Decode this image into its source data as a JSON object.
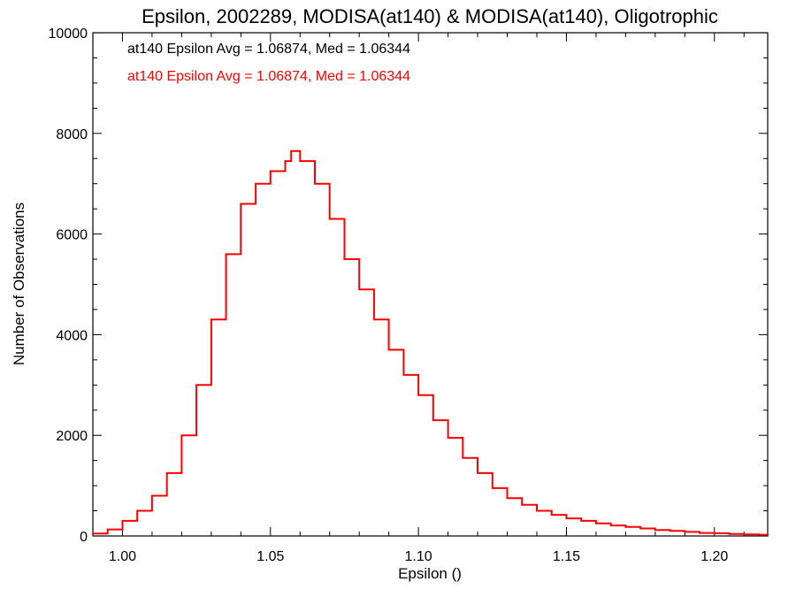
{
  "chart_data": {
    "type": "line",
    "step": true,
    "title": "Epsilon, 2002289, MODISA(at140) & MODISA(at140), Oligotrophic",
    "xlabel": "Epsilon ()",
    "ylabel": "Number of Observations",
    "xlim": [
      0.99,
      1.218
    ],
    "ylim": [
      0,
      10000
    ],
    "x_ticks": [
      "1.00",
      "1.05",
      "1.10",
      "1.15",
      "1.20"
    ],
    "y_ticks": [
      "0",
      "2000",
      "4000",
      "6000",
      "8000",
      "10000"
    ],
    "x_tick_values": [
      1.0,
      1.05,
      1.1,
      1.15,
      1.2
    ],
    "y_tick_values": [
      0,
      2000,
      4000,
      6000,
      8000,
      10000
    ],
    "annotations": [
      {
        "text": "at140 Epsilon Avg = 1.06874, Med = 1.06344",
        "color": "#000000"
      },
      {
        "text": "at140 Epsilon Avg = 1.06874, Med = 1.06344",
        "color": "#ff0000"
      }
    ],
    "series": [
      {
        "color": "#ff0000",
        "x": [
          0.99,
          0.995,
          1.0,
          1.005,
          1.01,
          1.015,
          1.02,
          1.025,
          1.03,
          1.035,
          1.04,
          1.045,
          1.05,
          1.055,
          1.057,
          1.06,
          1.065,
          1.07,
          1.075,
          1.08,
          1.085,
          1.09,
          1.095,
          1.1,
          1.105,
          1.11,
          1.115,
          1.12,
          1.125,
          1.13,
          1.135,
          1.14,
          1.145,
          1.15,
          1.155,
          1.16,
          1.165,
          1.17,
          1.175,
          1.18,
          1.185,
          1.19,
          1.195,
          1.2,
          1.205,
          1.21,
          1.215,
          1.218
        ],
        "y": [
          50,
          130,
          300,
          500,
          800,
          1250,
          2000,
          3000,
          4300,
          5600,
          6600,
          7000,
          7250,
          7450,
          7650,
          7450,
          7000,
          6300,
          5500,
          4900,
          4300,
          3700,
          3200,
          2800,
          2300,
          1950,
          1550,
          1250,
          950,
          750,
          620,
          500,
          420,
          350,
          300,
          250,
          210,
          180,
          150,
          120,
          100,
          80,
          60,
          55,
          40,
          30,
          25,
          20
        ]
      }
    ]
  }
}
